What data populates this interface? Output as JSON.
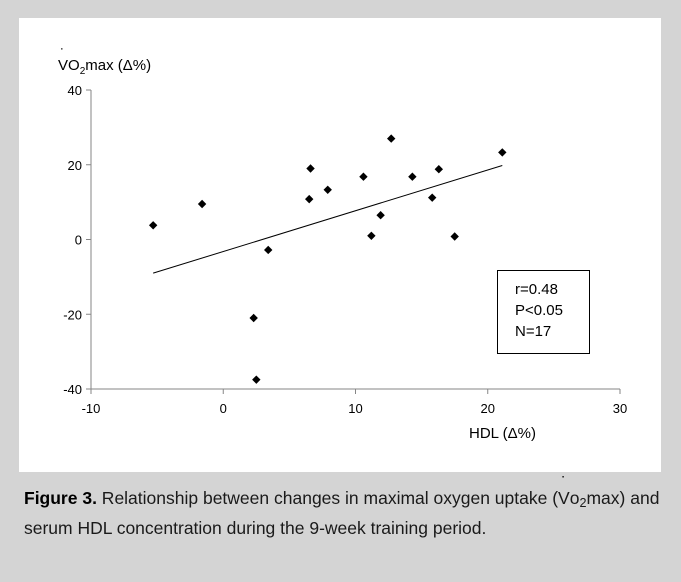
{
  "chart_data": {
    "type": "scatter",
    "ylabel": {
      "dotted": "V",
      "pre": "O",
      "sub": "2",
      "post": "max (Δ%)"
    },
    "xlabel": "HDL (Δ%)",
    "xlim": [
      -10,
      30
    ],
    "ylim": [
      -40,
      40
    ],
    "xticks": [
      "-10",
      "0",
      "10",
      "20",
      "30"
    ],
    "yticks": [
      "40",
      "20",
      "0",
      "-20",
      "-40"
    ],
    "points": [
      {
        "x": -5.3,
        "y": 3.8
      },
      {
        "x": -1.6,
        "y": 9.5
      },
      {
        "x": 2.3,
        "y": -21.0
      },
      {
        "x": 2.5,
        "y": -37.5
      },
      {
        "x": 3.4,
        "y": -2.8
      },
      {
        "x": 6.5,
        "y": 10.8
      },
      {
        "x": 6.6,
        "y": 19.0
      },
      {
        "x": 7.9,
        "y": 13.3
      },
      {
        "x": 10.6,
        "y": 16.8
      },
      {
        "x": 11.2,
        "y": 1.0
      },
      {
        "x": 11.9,
        "y": 6.5
      },
      {
        "x": 12.7,
        "y": 27.0
      },
      {
        "x": 14.3,
        "y": 16.8
      },
      {
        "x": 15.8,
        "y": 11.2
      },
      {
        "x": 16.3,
        "y": 18.8
      },
      {
        "x": 17.5,
        "y": 0.8
      },
      {
        "x": 21.1,
        "y": 23.3
      }
    ],
    "trendline": {
      "x": [
        -5.3,
        21.1
      ],
      "y": [
        -9.0,
        19.8
      ]
    },
    "legend_position": "right",
    "grid": false
  },
  "stats": {
    "r": "r=0.48",
    "p": "P<0.05",
    "n": "N=17"
  },
  "caption": {
    "label": "Figure 3.",
    "text_before": " Relationship between changes in maximal oxygen uptake (",
    "vo2_dotted": "V",
    "vo2_pre": "o",
    "vo2_sub": "2",
    "vo2_post": "max) and serum HDL concentration during the 9-week training period."
  },
  "colors": {
    "page_bg": "#d4d4d4",
    "panel_bg": "#ffffff",
    "marker": "#000000"
  }
}
